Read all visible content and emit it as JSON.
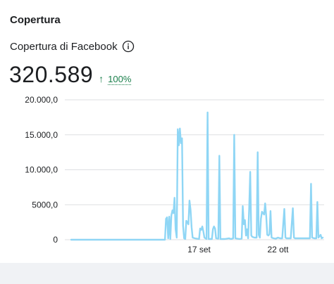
{
  "header": {
    "title": "Copertura"
  },
  "metric": {
    "label": "Copertura di Facebook",
    "value": "320.589",
    "delta": "100%",
    "delta_direction": "up"
  },
  "colors": {
    "line": "#8fd6f5",
    "grid": "#dddfe2",
    "delta": "#1a7f4b"
  },
  "icons": {
    "info": "info-icon",
    "delta": "arrow-up-icon"
  },
  "chart_data": {
    "type": "line",
    "title": "",
    "xlabel": "",
    "ylabel": "",
    "ylim": [
      0,
      20000
    ],
    "yticks": [
      0,
      5000,
      10000,
      15000,
      20000
    ],
    "ytick_labels": [
      "0",
      "5000,0",
      "10.000,0",
      "15.000,0",
      "20.000,0"
    ],
    "xticks": [
      {
        "day": 61,
        "label": "17 set"
      },
      {
        "day": 98,
        "label": "22 ott"
      }
    ],
    "grid": true,
    "series": [
      {
        "values": [
          [
            1,
            0
          ],
          [
            40,
            0
          ],
          [
            45,
            0
          ],
          [
            45.5,
            3000
          ],
          [
            46,
            3200
          ],
          [
            46.5,
            200
          ],
          [
            47,
            3300
          ],
          [
            47.5,
            100
          ],
          [
            48,
            3500
          ],
          [
            48.5,
            4200
          ],
          [
            49,
            3800
          ],
          [
            49.5,
            6000
          ],
          [
            50,
            1500
          ],
          [
            50.5,
            300
          ],
          [
            51,
            15800
          ],
          [
            51.5,
            13500
          ],
          [
            52,
            15900
          ],
          [
            52.5,
            13800
          ],
          [
            53,
            14500
          ],
          [
            53.5,
            2000
          ],
          [
            54,
            200
          ],
          [
            54.5,
            100
          ],
          [
            55,
            2700
          ],
          [
            55.5,
            2500
          ],
          [
            56,
            2200
          ],
          [
            56.5,
            5600
          ],
          [
            57,
            4300
          ],
          [
            57.5,
            1800
          ],
          [
            58,
            300
          ],
          [
            59,
            200
          ],
          [
            60,
            150
          ],
          [
            61,
            100
          ],
          [
            61.5,
            1600
          ],
          [
            62,
            1400
          ],
          [
            62.5,
            1900
          ],
          [
            63,
            1200
          ],
          [
            63.5,
            300
          ],
          [
            64,
            200
          ],
          [
            64.5,
            100
          ],
          [
            65,
            18200
          ],
          [
            65.5,
            100
          ],
          [
            66,
            100
          ],
          [
            67,
            100
          ],
          [
            67.5,
            1500
          ],
          [
            68,
            1900
          ],
          [
            68.5,
            1600
          ],
          [
            69,
            200
          ],
          [
            70,
            150
          ],
          [
            70.5,
            12000
          ],
          [
            71,
            100
          ],
          [
            72,
            100
          ],
          [
            73,
            100
          ],
          [
            74,
            150
          ],
          [
            75,
            200
          ],
          [
            76,
            100
          ],
          [
            77,
            200
          ],
          [
            77.5,
            15000
          ],
          [
            78,
            200
          ],
          [
            79,
            150
          ],
          [
            80,
            100
          ],
          [
            81,
            150
          ],
          [
            81.5,
            4800
          ],
          [
            82,
            2200
          ],
          [
            82.5,
            2800
          ],
          [
            83,
            600
          ],
          [
            83.5,
            1500
          ],
          [
            84,
            200
          ],
          [
            84.5,
            4400
          ],
          [
            85,
            9700
          ],
          [
            85.5,
            600
          ],
          [
            86,
            400
          ],
          [
            87,
            300
          ],
          [
            88,
            300
          ],
          [
            88.5,
            12500
          ],
          [
            89,
            700
          ],
          [
            89.5,
            300
          ],
          [
            90,
            3000
          ],
          [
            90.5,
            4000
          ],
          [
            91,
            3800
          ],
          [
            91.5,
            3600
          ],
          [
            92,
            5200
          ],
          [
            92.5,
            3400
          ],
          [
            93,
            700
          ],
          [
            93.5,
            600
          ],
          [
            94,
            800
          ],
          [
            94.5,
            4100
          ],
          [
            95,
            300
          ],
          [
            96,
            200
          ],
          [
            97,
            150
          ],
          [
            98,
            300
          ],
          [
            99,
            200
          ],
          [
            100,
            200
          ],
          [
            101,
            4400
          ],
          [
            101.5,
            300
          ],
          [
            102,
            200
          ],
          [
            103,
            200
          ],
          [
            104,
            200
          ],
          [
            105,
            4500
          ],
          [
            105.5,
            300
          ],
          [
            106,
            200
          ],
          [
            107,
            200
          ],
          [
            108,
            200
          ],
          [
            109,
            200
          ],
          [
            110,
            200
          ],
          [
            111,
            200
          ],
          [
            112,
            200
          ],
          [
            113,
            200
          ],
          [
            113.5,
            8000
          ],
          [
            114,
            300
          ],
          [
            115,
            200
          ],
          [
            116,
            200
          ],
          [
            116.5,
            5400
          ],
          [
            117,
            300
          ],
          [
            117.5,
            500
          ],
          [
            118,
            700
          ],
          [
            118.5,
            200
          ],
          [
            119,
            300
          ]
        ]
      }
    ]
  }
}
